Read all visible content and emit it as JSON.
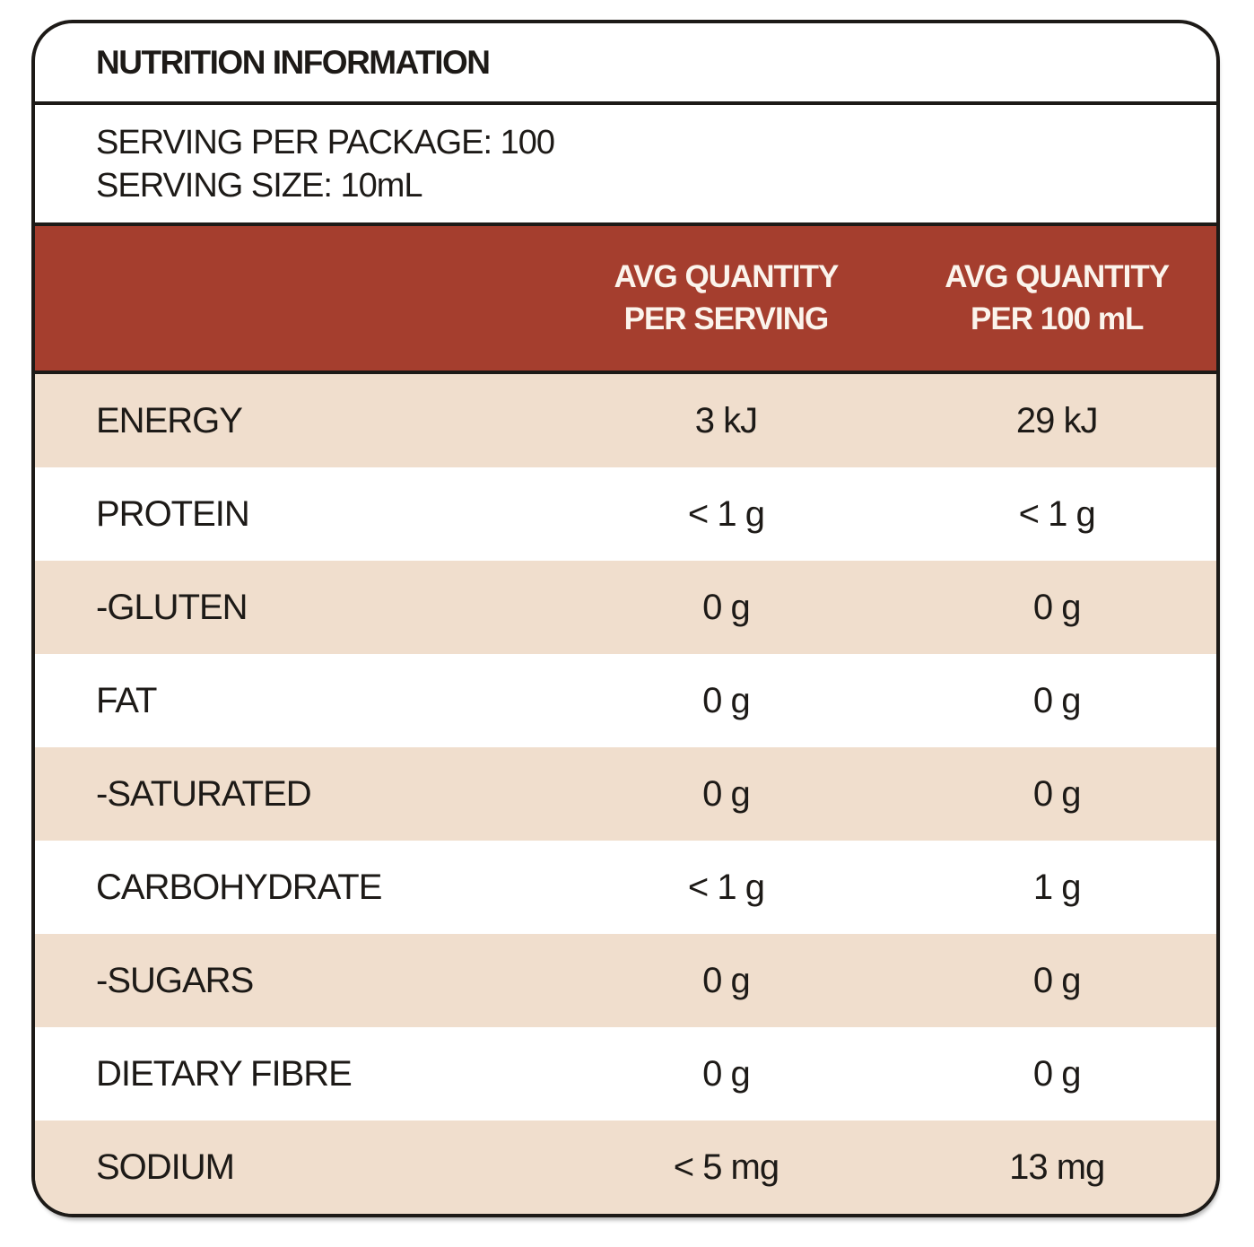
{
  "panel": {
    "title": "NUTRITION INFORMATION",
    "serving_per_package": "SERVING PER PACKAGE: 100",
    "serving_size": "SERVING SIZE: 10mL"
  },
  "table": {
    "columns": {
      "per_serving": {
        "line1": "AVG QUANTITY",
        "line2": "PER SERVING"
      },
      "per_100ml": {
        "line1": "AVG QUANTITY",
        "line2": "PER 100 mL"
      }
    },
    "rows": [
      {
        "label": "ENERGY",
        "per_serving": "3 kJ",
        "per_100ml": "29 kJ"
      },
      {
        "label": "PROTEIN",
        "per_serving": "< 1 g",
        "per_100ml": "< 1 g"
      },
      {
        "label": "-GLUTEN",
        "per_serving": "0 g",
        "per_100ml": "0 g"
      },
      {
        "label": "FAT",
        "per_serving": "0 g",
        "per_100ml": "0 g"
      },
      {
        "label": "-SATURATED",
        "per_serving": "0 g",
        "per_100ml": "0 g"
      },
      {
        "label": "CARBOHYDRATE",
        "per_serving": "< 1 g",
        "per_100ml": "1 g"
      },
      {
        "label": "-SUGARS",
        "per_serving": "0 g",
        "per_100ml": "0 g"
      },
      {
        "label": "DIETARY FIBRE",
        "per_serving": "0 g",
        "per_100ml": "0 g"
      },
      {
        "label": "SODIUM",
        "per_serving": "< 5 mg",
        "per_100ml": "13 mg"
      }
    ]
  },
  "colors": {
    "band_background": "#a53e2e",
    "row_alternate": "#f0decd",
    "border_ink": "#1d1a17",
    "band_text": "#fbf4ec"
  }
}
